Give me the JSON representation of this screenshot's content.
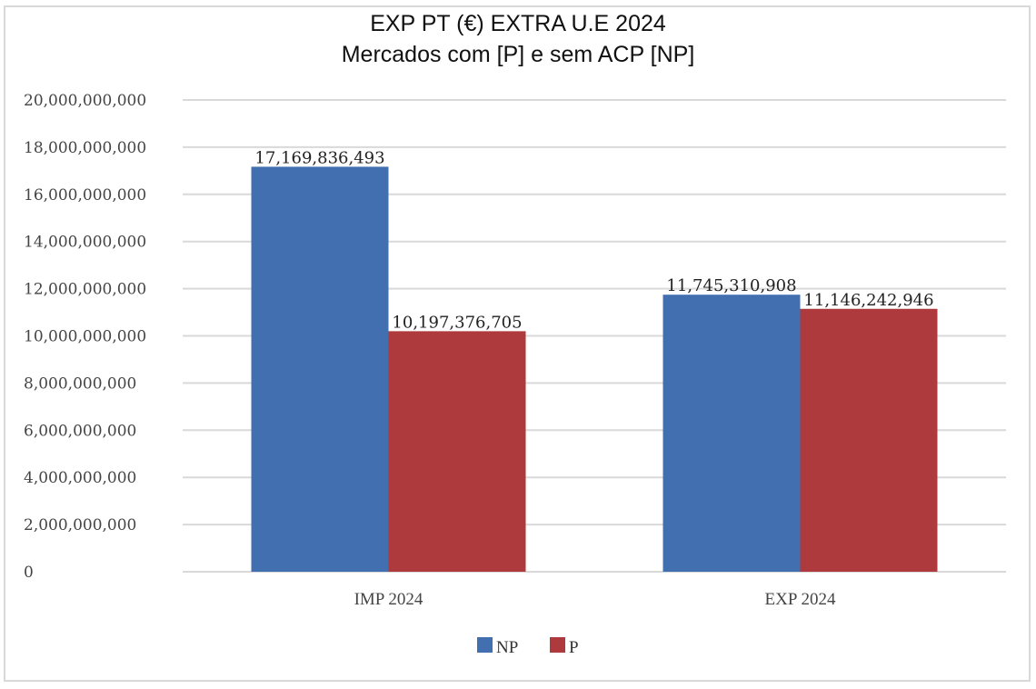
{
  "chart_data": {
    "type": "bar",
    "title": "EXP PT (€) EXTRA U.E 2024",
    "subtitle": "Mercados com [P] e sem ACP [NP]",
    "xlabel": "",
    "ylabel": "",
    "categories": [
      "IMP 2024",
      "EXP 2024"
    ],
    "series": [
      {
        "name": "NP",
        "color": "#416FB0",
        "values": [
          17169836493,
          11745310908
        ],
        "labels": [
          "17,169,836,493",
          "11,745,310,908"
        ]
      },
      {
        "name": "P",
        "color": "#AE3A3E",
        "values": [
          10197376705,
          11146242946
        ],
        "labels": [
          "10,197,376,705",
          "11,146,242,946"
        ]
      }
    ],
    "ylim": [
      0,
      20000000000
    ],
    "yticks": [
      0,
      2000000000,
      4000000000,
      6000000000,
      8000000000,
      10000000000,
      12000000000,
      14000000000,
      16000000000,
      18000000000,
      20000000000
    ],
    "ytick_labels": [
      "0",
      "2,000,000,000",
      "4,000,000,000",
      "6,000,000,000",
      "8,000,000,000",
      "10,000,000,000",
      "12,000,000,000",
      "14,000,000,000",
      "16,000,000,000",
      "18,000,000,000",
      "20,000,000,000"
    ],
    "grid": true,
    "legend_position": "bottom"
  }
}
